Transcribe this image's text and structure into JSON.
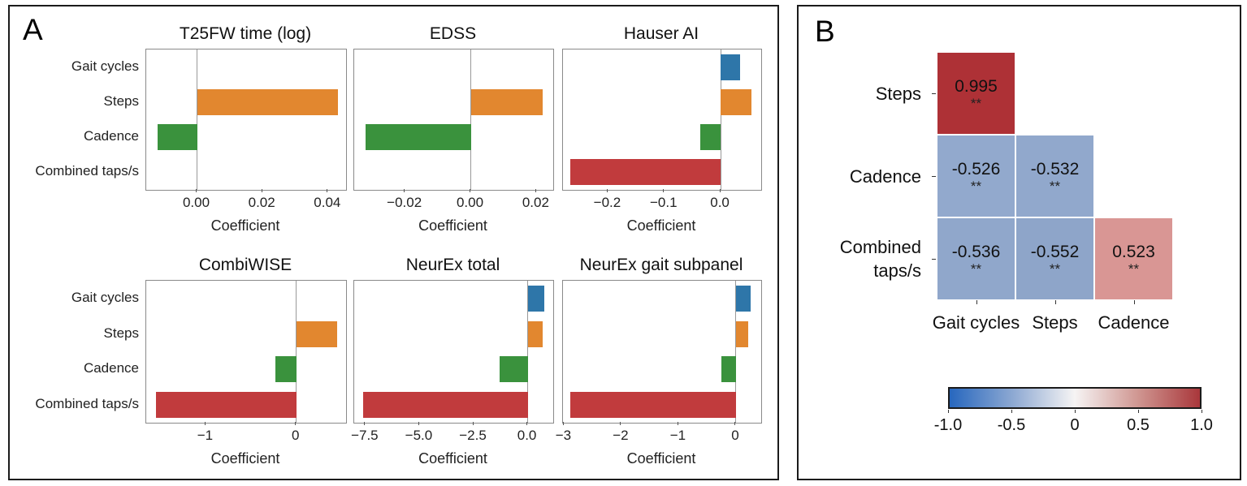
{
  "figure": {
    "panel_a_letter": "A",
    "panel_b_letter": "B"
  },
  "bar_colors": [
    "#2E76A9",
    "#E2872F",
    "#3A923D",
    "#C13B3D"
  ],
  "chart_data": [
    {
      "type": "bar",
      "panel": "A",
      "orientation": "horizontal",
      "title": "T25FW time (log)",
      "xlabel": "Coefficient",
      "categories": [
        "Gait cycles",
        "Steps",
        "Cadence",
        "Combined taps/s"
      ],
      "values": [
        0,
        0.043,
        -0.012,
        0
      ],
      "xlim": [
        -0.0155,
        0.0455
      ],
      "xticks": [
        0,
        0.02,
        0.04
      ],
      "xtick_labels": [
        "0.00",
        "0.02",
        "0.04"
      ]
    },
    {
      "type": "bar",
      "panel": "A",
      "orientation": "horizontal",
      "title": "EDSS",
      "xlabel": "Coefficient",
      "categories": [
        "Gait cycles",
        "Steps",
        "Cadence",
        "Combined taps/s"
      ],
      "values": [
        0,
        0.022,
        -0.032,
        0
      ],
      "xlim": [
        -0.0355,
        0.0251
      ],
      "xticks": [
        -0.02,
        0,
        0.02
      ],
      "xtick_labels": [
        "−0.02",
        "0.00",
        "0.02"
      ]
    },
    {
      "type": "bar",
      "panel": "A",
      "orientation": "horizontal",
      "title": "Hauser AI",
      "xlabel": "Coefficient",
      "categories": [
        "Gait cycles",
        "Steps",
        "Cadence",
        "Combined taps/s"
      ],
      "values": [
        0.035,
        0.054,
        -0.036,
        -0.267
      ],
      "xlim": [
        -0.28,
        0.072
      ],
      "xticks": [
        -0.2,
        -0.1,
        0
      ],
      "xtick_labels": [
        "−0.2",
        "−0.1",
        "0.0"
      ]
    },
    {
      "type": "bar",
      "panel": "A",
      "orientation": "horizontal",
      "title": "CombiWISE",
      "xlabel": "Coefficient",
      "categories": [
        "Gait cycles",
        "Steps",
        "Cadence",
        "Combined taps/s"
      ],
      "values": [
        0,
        0.45,
        -0.23,
        -1.55
      ],
      "xlim": [
        -1.66,
        0.551
      ],
      "xticks": [
        -1,
        0
      ],
      "xtick_labels": [
        "−1",
        "0"
      ]
    },
    {
      "type": "bar",
      "panel": "A",
      "orientation": "horizontal",
      "title": "NeurEx total",
      "xlabel": "Coefficient",
      "categories": [
        "Gait cycles",
        "Steps",
        "Cadence",
        "Combined taps/s"
      ],
      "values": [
        0.75,
        0.69,
        -1.31,
        -7.62
      ],
      "xlim": [
        -8.02,
        1.18
      ],
      "xticks": [
        -7.5,
        -5,
        -2.5,
        0
      ],
      "xtick_labels": [
        "−7.5",
        "−5.0",
        "−2.5",
        "0.0"
      ]
    },
    {
      "type": "bar",
      "panel": "A",
      "orientation": "horizontal",
      "title": "NeurEx gait subpanel",
      "xlabel": "Coefficient",
      "categories": [
        "Gait cycles",
        "Steps",
        "Cadence",
        "Combined taps/s"
      ],
      "values": [
        0.26,
        0.22,
        -0.26,
        -2.89
      ],
      "xlim": [
        -3.02,
        0.44
      ],
      "xticks": [
        -3,
        -2,
        -1,
        0
      ],
      "xtick_labels": [
        "−3",
        "−2",
        "−1",
        "0"
      ]
    },
    {
      "type": "heatmap",
      "panel": "B",
      "rows": [
        "Steps",
        "Cadence",
        "Combined taps/s"
      ],
      "cols": [
        "Gait cycles",
        "Steps",
        "Cadence"
      ],
      "cells": [
        {
          "row": 0,
          "col": 0,
          "value": "0.995",
          "sig": "**",
          "color": "#AE3136"
        },
        {
          "row": 1,
          "col": 0,
          "value": "-0.526",
          "sig": "**",
          "color": "#92A9CD"
        },
        {
          "row": 1,
          "col": 1,
          "value": "-0.532",
          "sig": "**",
          "color": "#91A8CC"
        },
        {
          "row": 2,
          "col": 0,
          "value": "-0.536",
          "sig": "**",
          "color": "#90A7CB"
        },
        {
          "row": 2,
          "col": 1,
          "value": "-0.552",
          "sig": "**",
          "color": "#8EA5C9"
        },
        {
          "row": 2,
          "col": 2,
          "value": "0.523",
          "sig": "**",
          "color": "#D99694"
        }
      ],
      "colorbar": {
        "range": [
          -1.0,
          1.0
        ],
        "ticks": [
          "-1.0",
          "-0.5",
          "0",
          "0.5",
          "1.0"
        ],
        "gradient": [
          "#2767BE",
          "#8CA8D2",
          "#F6F4F4",
          "#D09792",
          "#A9373B"
        ]
      }
    }
  ]
}
